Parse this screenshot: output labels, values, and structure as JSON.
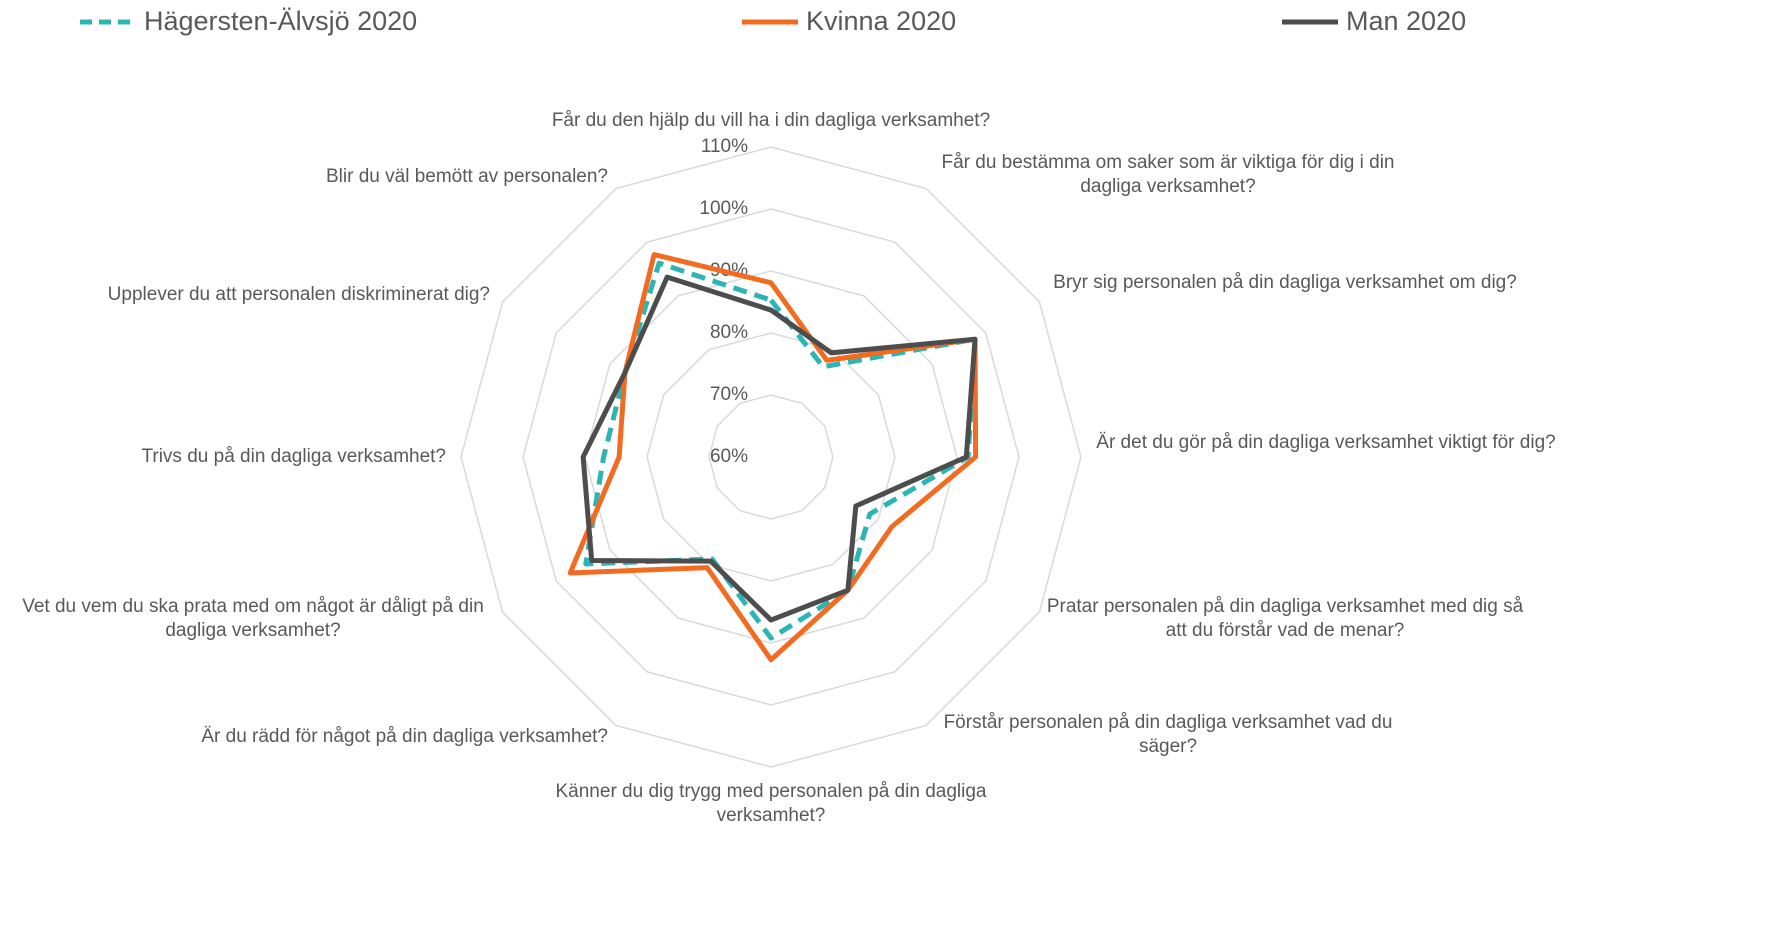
{
  "chart_data": {
    "type": "radar",
    "categories": [
      "Får du den hjälp du vill ha i din dagliga verksamhet?",
      "Får du bestämma om saker som är viktiga för dig i din dagliga verksamhet?",
      "Bryr sig personalen på din dagliga verksamhet om dig?",
      "Är det du gör på din dagliga verksamhet viktigt för dig?",
      "Pratar personalen på din dagliga verksamhet med dig så att du förstår vad de menar?",
      "Förstår personalen på din dagliga verksamhet vad du säger?",
      "Känner du dig trygg med personalen på din dagliga verksamhet?",
      "Är du rädd för något på din dagliga verksamhet?",
      "Vet du vem du ska prata med om något är dåligt på din dagliga verksamhet?",
      "Trivs du på din dagliga verksamhet?",
      "Upplever du att personalen diskriminerat dig?",
      "Blir du väl bemött av personalen?"
    ],
    "series": [
      {
        "name": "Hägersten-Älvsjö 2020",
        "color": "#2cb5b5",
        "dashed": true,
        "values": [
          85.3,
          76.8,
          98,
          91.8,
          78.4,
          84.8,
          89.2,
          79,
          94.5,
          87,
          87.2,
          96.1
        ]
      },
      {
        "name": "Kvinna 2020",
        "color": "#f26b21",
        "values": [
          88.1,
          78,
          98,
          93,
          82.5,
          84.8,
          92.7,
          80.6,
          97.4,
          84.5,
          87.2,
          97.7
        ]
      },
      {
        "name": "Man 2020",
        "color": "#4d4d4d",
        "values": [
          83.7,
          79.4,
          98,
          91.5,
          75.8,
          84.8,
          86.3,
          79.4,
          93.4,
          90.3,
          87.2,
          93.5
        ]
      }
    ],
    "ylim": [
      60,
      110
    ],
    "yticks": [
      {
        "value": 60,
        "label": "60%"
      },
      {
        "value": 70,
        "label": "70%"
      },
      {
        "value": 80,
        "label": "80%"
      },
      {
        "value": 90,
        "label": "90%"
      },
      {
        "value": 100,
        "label": "100%"
      },
      {
        "value": 110,
        "label": "110%"
      }
    ],
    "grid": true,
    "legend": "top"
  }
}
